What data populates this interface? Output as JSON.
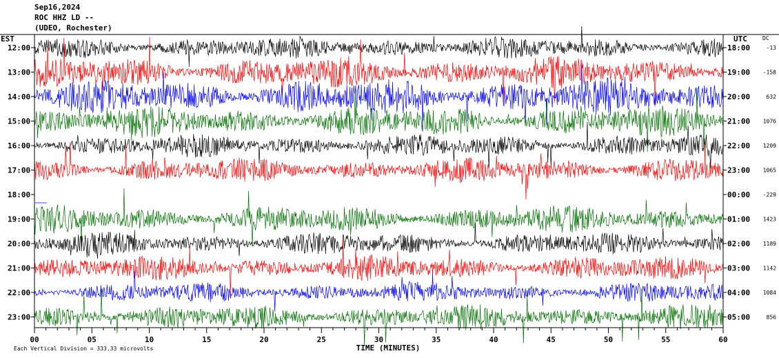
{
  "header": {
    "date": "Sep16,2024",
    "station": "ROC HHZ LD --",
    "location": "(UDEO, Rochester)"
  },
  "left_axis_label": "EST",
  "right_axis_label": "UTC",
  "dc_label": "DC",
  "footer": {
    "scale_note": "Each Vertical Division = 333.33 microvolts",
    "x_title": "TIME (MINUTES)"
  },
  "colors": {
    "black": "#000000",
    "red": "#ff0000",
    "blue": "#0000ff",
    "green": "#007000"
  },
  "chart_data": {
    "type": "line",
    "title": "",
    "xlabel": "TIME (MINUTES)",
    "ylabel": "",
    "xlim": [
      0,
      60
    ],
    "x_ticks": [
      "00",
      "05",
      "10",
      "15",
      "20",
      "25",
      "30",
      "35",
      "40",
      "45",
      "50",
      "55",
      "60"
    ],
    "x_tick_values": [
      0,
      5,
      10,
      15,
      20,
      25,
      30,
      35,
      40,
      45,
      50,
      55,
      60
    ],
    "series_color_cycle": [
      "black",
      "red",
      "blue",
      "green"
    ],
    "rows": [
      {
        "est": "12:00",
        "utc": "18:00",
        "dc": "-13",
        "color": "black",
        "amplitude": 0.5
      },
      {
        "est": "13:00",
        "utc": "19:00",
        "dc": "-158",
        "color": "red",
        "amplitude": 0.7
      },
      {
        "est": "14:00",
        "utc": "20:00",
        "dc": "632",
        "color": "blue",
        "amplitude": 0.8
      },
      {
        "est": "15:00",
        "utc": "21:00",
        "dc": "1076",
        "color": "green",
        "amplitude": 0.7
      },
      {
        "est": "16:00",
        "utc": "22:00",
        "dc": "1209",
        "color": "black",
        "amplitude": 0.5
      },
      {
        "est": "17:00",
        "utc": "23:00",
        "dc": "1065",
        "color": "red",
        "amplitude": 0.55
      },
      {
        "est": "18:00",
        "utc": "00:00",
        "dc": "-229",
        "color": "blue",
        "amplitude": 0.0
      },
      {
        "est": "19:00",
        "utc": "01:00",
        "dc": "1423",
        "color": "green",
        "amplitude": 0.6
      },
      {
        "est": "20:00",
        "utc": "02:00",
        "dc": "1189",
        "color": "black",
        "amplitude": 0.5
      },
      {
        "est": "21:00",
        "utc": "03:00",
        "dc": "1142",
        "color": "red",
        "amplitude": 0.55
      },
      {
        "est": "22:00",
        "utc": "04:00",
        "dc": "1084",
        "color": "blue",
        "amplitude": 0.45
      },
      {
        "est": "23:00",
        "utc": "05:00",
        "dc": "856",
        "color": "green",
        "amplitude": 0.55
      }
    ]
  }
}
